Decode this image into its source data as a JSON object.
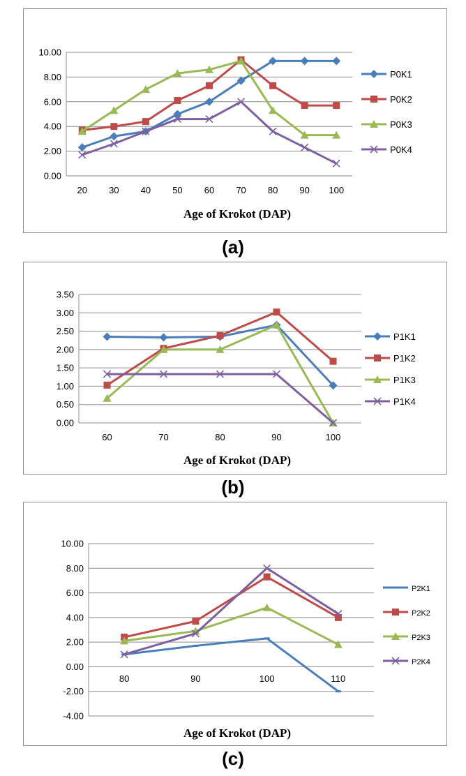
{
  "chart_data": [
    {
      "type": "line",
      "panel_label": "(a)",
      "xlabel": "Age of Krokot (DAP)",
      "ylabel": "",
      "categories": [
        "20",
        "30",
        "40",
        "50",
        "60",
        "70",
        "80",
        "90",
        "100"
      ],
      "ylim": [
        0,
        10
      ],
      "ytick_step": 2,
      "ytick_labels": [
        "0.00",
        "2.00",
        "4.00",
        "6.00",
        "8.00",
        "10.00"
      ],
      "grid": true,
      "legend_position": "right",
      "series": [
        {
          "name": "P0K1",
          "color": "#4a7ebb",
          "marker": "diamond",
          "values": [
            2.3,
            3.2,
            3.6,
            5.0,
            6.0,
            7.7,
            9.3,
            9.3,
            9.3
          ]
        },
        {
          "name": "P0K2",
          "color": "#be4b48",
          "marker": "square",
          "values": [
            3.7,
            4.0,
            4.4,
            6.1,
            7.3,
            9.4,
            7.3,
            5.7,
            5.7
          ]
        },
        {
          "name": "P0K3",
          "color": "#98b954",
          "marker": "triangle",
          "values": [
            3.6,
            5.3,
            7.0,
            8.3,
            8.6,
            9.3,
            5.3,
            3.3,
            3.3
          ]
        },
        {
          "name": "P0K4",
          "color": "#7d5fa0",
          "marker": "x",
          "values": [
            1.7,
            2.6,
            3.6,
            4.6,
            4.6,
            6.0,
            3.6,
            2.3,
            1.0
          ]
        }
      ]
    },
    {
      "type": "line",
      "panel_label": "(b)",
      "xlabel": "Age of Krokot (DAP)",
      "ylabel": "",
      "categories": [
        "60",
        "70",
        "80",
        "90",
        "100"
      ],
      "ylim": [
        0,
        3.5
      ],
      "ytick_step": 0.5,
      "ytick_labels": [
        "0.00",
        "0.50",
        "1.00",
        "1.50",
        "2.00",
        "2.50",
        "3.00",
        "3.50"
      ],
      "grid": true,
      "legend_position": "right",
      "series": [
        {
          "name": "P1K1",
          "color": "#4a7ebb",
          "marker": "diamond",
          "values": [
            2.35,
            2.33,
            2.35,
            2.67,
            1.02
          ]
        },
        {
          "name": "P1K2",
          "color": "#be4b48",
          "marker": "square",
          "values": [
            1.03,
            2.03,
            2.38,
            3.02,
            1.68
          ]
        },
        {
          "name": "P1K3",
          "color": "#98b954",
          "marker": "triangle",
          "values": [
            0.67,
            2.0,
            2.0,
            2.67,
            0.0
          ]
        },
        {
          "name": "P1K4",
          "color": "#7d5fa0",
          "marker": "x",
          "values": [
            1.33,
            1.33,
            1.33,
            1.33,
            0.0
          ]
        }
      ]
    },
    {
      "type": "line",
      "panel_label": "(c)",
      "xlabel": "Age of Krokot (DAP)",
      "ylabel": "",
      "categories": [
        "80",
        "90",
        "100",
        "110"
      ],
      "ylim": [
        -4,
        10
      ],
      "ytick_step": 2,
      "ytick_labels": [
        "-4.00",
        "-2.00",
        "0.00",
        "2.00",
        "4.00",
        "6.00",
        "8.00",
        "10.00"
      ],
      "grid": true,
      "legend_position": "right",
      "series": [
        {
          "name": "P2K1",
          "color": "#4a7ebb",
          "marker": "dash",
          "values": [
            1.0,
            1.7,
            2.3,
            -2.0
          ]
        },
        {
          "name": "P2K2",
          "color": "#be4b48",
          "marker": "square",
          "values": [
            2.4,
            3.7,
            7.3,
            4.0
          ]
        },
        {
          "name": "P2K3",
          "color": "#98b954",
          "marker": "triangle",
          "values": [
            2.1,
            2.9,
            4.8,
            1.8
          ]
        },
        {
          "name": "P2K4",
          "color": "#7d5fa0",
          "marker": "x",
          "values": [
            1.0,
            2.7,
            8.0,
            4.3
          ]
        }
      ]
    }
  ]
}
